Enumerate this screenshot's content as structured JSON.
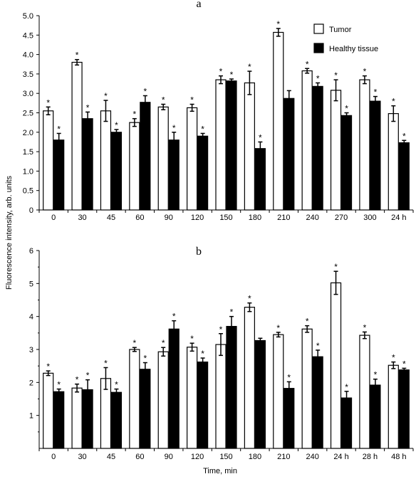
{
  "figure": {
    "ylabel": "Fluorescence intensity, arb. units",
    "xlabel": "Time, min"
  },
  "legend": {
    "items": [
      {
        "label": "Tumor",
        "fill": "#ffffff"
      },
      {
        "label": "Healthy tissue",
        "fill": "#000000"
      }
    ],
    "position": "top-right of panel a"
  },
  "colors": {
    "tumor": "#ffffff",
    "healthy": "#000000",
    "axis": "#000000"
  },
  "chart_data": [
    {
      "type": "bar",
      "panel": "a",
      "categories": [
        "0",
        "30",
        "45",
        "60",
        "90",
        "120",
        "150",
        "180",
        "210",
        "240",
        "270",
        "300",
        "24 h"
      ],
      "ylim": [
        0,
        5.0
      ],
      "yticks": [
        "0",
        "0.5",
        "1.0",
        "1.5",
        "2.0",
        "2.5",
        "3.0",
        "3.5",
        "4.0",
        "4.5",
        "5.0"
      ],
      "ytick_values": [
        0,
        0.5,
        1.0,
        1.5,
        2.0,
        2.5,
        3.0,
        3.5,
        4.0,
        4.5,
        5.0
      ],
      "series": [
        {
          "name": "Tumor",
          "values": [
            2.55,
            3.8,
            2.55,
            2.25,
            2.65,
            2.63,
            3.35,
            3.27,
            4.57,
            3.58,
            3.08,
            3.35,
            2.48
          ],
          "errors": [
            0.1,
            0.07,
            0.27,
            0.1,
            0.07,
            0.09,
            0.1,
            0.3,
            0.1,
            0.06,
            0.27,
            0.1,
            0.2
          ],
          "significant": [
            true,
            true,
            true,
            true,
            true,
            true,
            true,
            true,
            true,
            true,
            true,
            true,
            true
          ]
        },
        {
          "name": "Healthy tissue",
          "values": [
            1.8,
            2.35,
            2.0,
            2.77,
            1.8,
            1.9,
            3.32,
            1.58,
            2.87,
            3.18,
            2.43,
            2.8,
            1.73
          ],
          "errors": [
            0.17,
            0.17,
            0.07,
            0.17,
            0.2,
            0.07,
            0.05,
            0.17,
            0.2,
            0.09,
            0.07,
            0.12,
            0.06
          ],
          "significant": [
            true,
            true,
            true,
            true,
            true,
            true,
            true,
            true,
            false,
            true,
            true,
            true,
            true
          ]
        }
      ]
    },
    {
      "type": "bar",
      "panel": "b",
      "categories": [
        "0",
        "30",
        "45",
        "60",
        "90",
        "120",
        "150",
        "180",
        "210",
        "240",
        "24 h",
        "28 h",
        "48 h"
      ],
      "ylim": [
        0,
        6
      ],
      "yticks": [
        "1",
        "2",
        "3",
        "4",
        "5",
        "6"
      ],
      "ytick_values": [
        1,
        2,
        3,
        4,
        5,
        6
      ],
      "series": [
        {
          "name": "Tumor",
          "values": [
            2.28,
            1.83,
            2.12,
            3.0,
            2.93,
            3.07,
            3.15,
            4.28,
            3.45,
            3.62,
            5.02,
            3.43,
            2.52
          ],
          "errors": [
            0.07,
            0.12,
            0.33,
            0.06,
            0.13,
            0.12,
            0.33,
            0.13,
            0.07,
            0.1,
            0.35,
            0.1,
            0.1
          ],
          "significant": [
            true,
            true,
            true,
            true,
            true,
            true,
            true,
            true,
            true,
            true,
            true,
            true,
            true
          ]
        },
        {
          "name": "Healthy tissue",
          "values": [
            1.72,
            1.78,
            1.7,
            2.4,
            3.62,
            2.62,
            3.7,
            3.27,
            1.82,
            2.78,
            1.53,
            1.92,
            2.38
          ],
          "errors": [
            0.08,
            0.3,
            0.1,
            0.2,
            0.25,
            0.12,
            0.3,
            0.07,
            0.2,
            0.2,
            0.2,
            0.18,
            0.05
          ],
          "significant": [
            true,
            true,
            true,
            true,
            true,
            true,
            true,
            false,
            true,
            true,
            true,
            true,
            true
          ]
        }
      ]
    }
  ]
}
